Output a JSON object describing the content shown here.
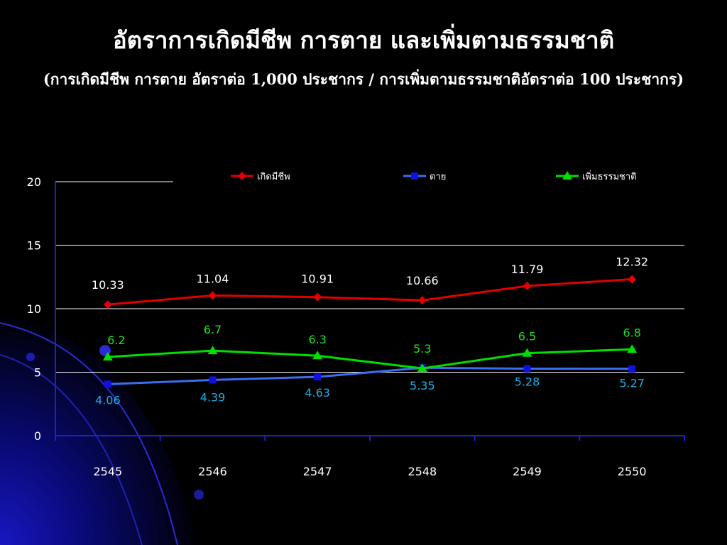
{
  "slide": {
    "title": "อัตราการเกิดมีชีพ การตาย และเพิ่มตามธรรมชาติ",
    "subtitle": "(การเกิดมีชีพ การตาย อัตราต่อ 1,000 ประชากร / การเพิ่มตามธรรมชาติอัตราต่อ 100 ประชากร)"
  },
  "chart_data": {
    "type": "line",
    "title": "",
    "xlabel": "",
    "ylabel": "",
    "categories": [
      "2545",
      "2546",
      "2547",
      "2548",
      "2549",
      "2550"
    ],
    "ylim": [
      0,
      20
    ],
    "yticks": [
      0,
      5,
      10,
      15,
      20
    ],
    "grid": true,
    "legend": "top",
    "series": [
      {
        "name": "เกิดมีชีพ",
        "values": [
          10.33,
          11.04,
          10.91,
          10.66,
          11.79,
          12.32
        ],
        "labels": [
          "10.33",
          "11.04",
          "10.91",
          "10.66",
          "11.79",
          "12.32"
        ],
        "color": "#e00000",
        "label_color": "#ffffff",
        "marker": "diamond"
      },
      {
        "name": "ตาย",
        "values": [
          4.06,
          4.39,
          4.63,
          5.35,
          5.28,
          5.27
        ],
        "labels": [
          "4.06",
          "4.39",
          "4.63",
          "5.35",
          "5.28",
          "5.27"
        ],
        "color": "#3b6df0",
        "label_color": "#1ab0e8",
        "marker": "square"
      },
      {
        "name": "เพิ่มธรรมชาติ",
        "values": [
          6.2,
          6.7,
          6.3,
          5.3,
          6.5,
          6.8
        ],
        "labels": [
          "6.2",
          "6.7",
          "6.3",
          "5.3",
          "6.5",
          "6.8"
        ],
        "color": "#00e000",
        "label_color": "#22dd22",
        "marker": "triangle"
      }
    ]
  }
}
